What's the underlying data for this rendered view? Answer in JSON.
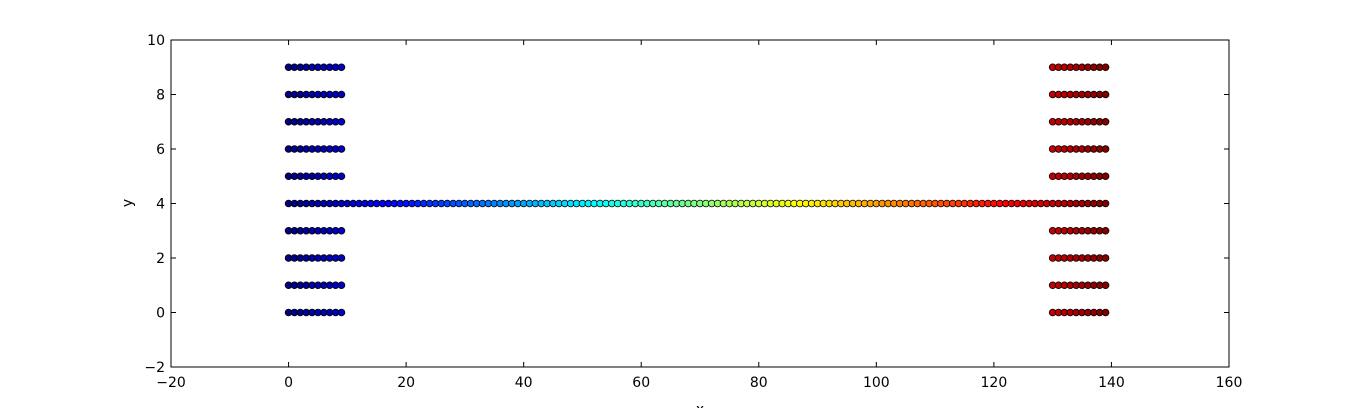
{
  "chart_data": {
    "type": "scatter",
    "x_label": "x",
    "y_label": "y",
    "colormap": "jet",
    "x": [
      0,
      1,
      2,
      3,
      4,
      5,
      6,
      7,
      8,
      9,
      0,
      1,
      2,
      3,
      4,
      5,
      6,
      7,
      8,
      9,
      0,
      1,
      2,
      3,
      4,
      5,
      6,
      7,
      8,
      9,
      0,
      1,
      2,
      3,
      4,
      5,
      6,
      7,
      8,
      9,
      0,
      1,
      2,
      3,
      4,
      5,
      6,
      7,
      8,
      9,
      0,
      1,
      2,
      3,
      4,
      5,
      6,
      7,
      8,
      9,
      0,
      1,
      2,
      3,
      4,
      5,
      6,
      7,
      8,
      9,
      0,
      1,
      2,
      3,
      4,
      5,
      6,
      7,
      8,
      9,
      0,
      1,
      2,
      3,
      4,
      5,
      6,
      7,
      8,
      9,
      0,
      1,
      2,
      3,
      4,
      5,
      6,
      7,
      8,
      9,
      10,
      11,
      12,
      13,
      14,
      15,
      16,
      17,
      18,
      19,
      20,
      21,
      22,
      23,
      24,
      25,
      26,
      27,
      28,
      29,
      30,
      31,
      32,
      33,
      34,
      35,
      36,
      37,
      38,
      39,
      40,
      41,
      42,
      43,
      44,
      45,
      46,
      47,
      48,
      49,
      50,
      51,
      52,
      53,
      54,
      55,
      56,
      57,
      58,
      59,
      60,
      61,
      62,
      63,
      64,
      65,
      66,
      67,
      68,
      69,
      70,
      71,
      72,
      73,
      74,
      75,
      76,
      77,
      78,
      79,
      80,
      81,
      82,
      83,
      84,
      85,
      86,
      87,
      88,
      89,
      90,
      91,
      92,
      93,
      94,
      95,
      96,
      97,
      98,
      99,
      100,
      101,
      102,
      103,
      104,
      105,
      106,
      107,
      108,
      109,
      110,
      111,
      112,
      113,
      114,
      115,
      116,
      117,
      118,
      119,
      120,
      121,
      122,
      123,
      124,
      125,
      126,
      127,
      128,
      129,
      130,
      131,
      132,
      133,
      134,
      135,
      136,
      137,
      138,
      139,
      130,
      131,
      132,
      133,
      134,
      135,
      136,
      137,
      138,
      139,
      130,
      131,
      132,
      133,
      134,
      135,
      136,
      137,
      138,
      139,
      130,
      131,
      132,
      133,
      134,
      135,
      136,
      137,
      138,
      139,
      130,
      131,
      132,
      133,
      134,
      135,
      136,
      137,
      138,
      139,
      130,
      131,
      132,
      133,
      134,
      135,
      136,
      137,
      138,
      139,
      130,
      131,
      132,
      133,
      134,
      135,
      136,
      137,
      138,
      139,
      130,
      131,
      132,
      133,
      134,
      135,
      136,
      137,
      138,
      139,
      130,
      131,
      132,
      133,
      134,
      135,
      136,
      137,
      138,
      139,
      130,
      131,
      132,
      133,
      134,
      135,
      136,
      137,
      138,
      139
    ],
    "y": [
      0,
      0,
      0,
      0,
      0,
      0,
      0,
      0,
      0,
      0,
      1,
      1,
      1,
      1,
      1,
      1,
      1,
      1,
      1,
      1,
      2,
      2,
      2,
      2,
      2,
      2,
      2,
      2,
      2,
      2,
      3,
      3,
      3,
      3,
      3,
      3,
      3,
      3,
      3,
      3,
      4,
      4,
      4,
      4,
      4,
      4,
      4,
      4,
      4,
      4,
      5,
      5,
      5,
      5,
      5,
      5,
      5,
      5,
      5,
      5,
      6,
      6,
      6,
      6,
      6,
      6,
      6,
      6,
      6,
      6,
      7,
      7,
      7,
      7,
      7,
      7,
      7,
      7,
      7,
      7,
      8,
      8,
      8,
      8,
      8,
      8,
      8,
      8,
      8,
      8,
      9,
      9,
      9,
      9,
      9,
      9,
      9,
      9,
      9,
      9,
      4,
      4,
      4,
      4,
      4,
      4,
      4,
      4,
      4,
      4,
      4,
      4,
      4,
      4,
      4,
      4,
      4,
      4,
      4,
      4,
      4,
      4,
      4,
      4,
      4,
      4,
      4,
      4,
      4,
      4,
      4,
      4,
      4,
      4,
      4,
      4,
      4,
      4,
      4,
      4,
      4,
      4,
      4,
      4,
      4,
      4,
      4,
      4,
      4,
      4,
      4,
      4,
      4,
      4,
      4,
      4,
      4,
      4,
      4,
      4,
      4,
      4,
      4,
      4,
      4,
      4,
      4,
      4,
      4,
      4,
      4,
      4,
      4,
      4,
      4,
      4,
      4,
      4,
      4,
      4,
      4,
      4,
      4,
      4,
      4,
      4,
      4,
      4,
      4,
      4,
      4,
      4,
      4,
      4,
      4,
      4,
      4,
      4,
      4,
      4,
      4,
      4,
      4,
      4,
      4,
      4,
      4,
      4,
      4,
      4,
      4,
      4,
      4,
      4,
      4,
      4,
      4,
      4,
      4,
      4,
      0,
      0,
      0,
      0,
      0,
      0,
      0,
      0,
      0,
      0,
      1,
      1,
      1,
      1,
      1,
      1,
      1,
      1,
      1,
      1,
      2,
      2,
      2,
      2,
      2,
      2,
      2,
      2,
      2,
      2,
      3,
      3,
      3,
      3,
      3,
      3,
      3,
      3,
      3,
      3,
      4,
      4,
      4,
      4,
      4,
      4,
      4,
      4,
      4,
      4,
      5,
      5,
      5,
      5,
      5,
      5,
      5,
      5,
      5,
      5,
      6,
      6,
      6,
      6,
      6,
      6,
      6,
      6,
      6,
      6,
      7,
      7,
      7,
      7,
      7,
      7,
      7,
      7,
      7,
      7,
      8,
      8,
      8,
      8,
      8,
      8,
      8,
      8,
      8,
      8,
      9,
      9,
      9,
      9,
      9,
      9,
      9,
      9,
      9,
      9
    ],
    "xlim": [
      -20,
      160
    ],
    "xticks": [
      {
        "value": -20,
        "label": "−20"
      },
      0,
      20,
      40,
      60,
      80,
      100,
      120,
      140,
      160
    ],
    "ylim": [
      -2,
      10
    ],
    "yticks": [
      {
        "value": -2,
        "label": "−2"
      },
      0,
      2,
      4,
      6,
      8,
      10
    ]
  }
}
